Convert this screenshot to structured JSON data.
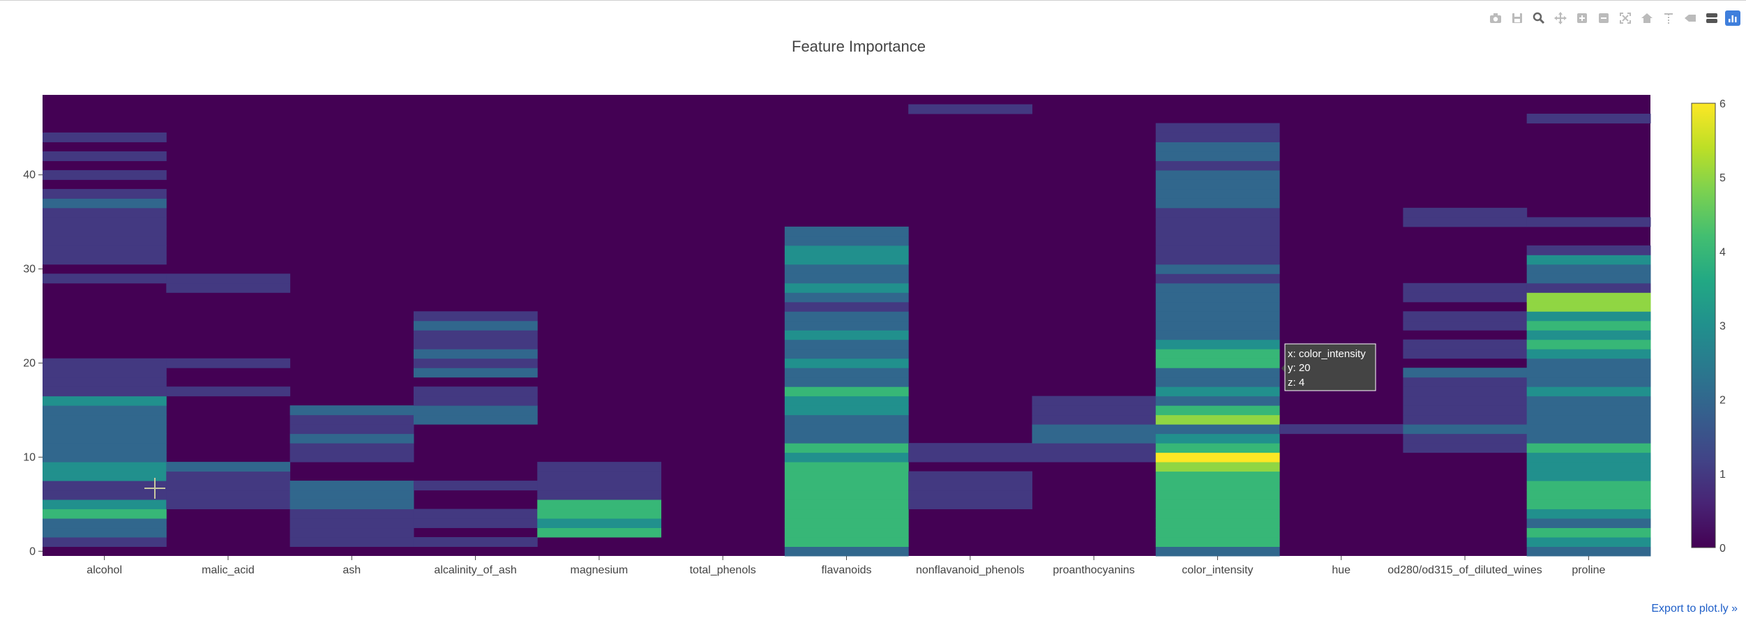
{
  "modebar": {
    "buttons": [
      {
        "name": "camera-icon",
        "glyph": "camera"
      },
      {
        "name": "save-icon",
        "glyph": "save"
      },
      {
        "name": "zoom-icon",
        "glyph": "zoom"
      },
      {
        "name": "pan-icon",
        "glyph": "pan"
      },
      {
        "name": "zoom-in-icon",
        "glyph": "plus"
      },
      {
        "name": "zoom-out-icon",
        "glyph": "minus"
      },
      {
        "name": "autoscale-icon",
        "glyph": "autoscale"
      },
      {
        "name": "reset-axes-icon",
        "glyph": "home"
      },
      {
        "name": "spike-lines-icon",
        "glyph": "spike"
      },
      {
        "name": "hover-closest-icon",
        "glyph": "closest"
      },
      {
        "name": "hover-compare-icon",
        "glyph": "compare"
      },
      {
        "name": "plotly-logo-icon",
        "glyph": "logo"
      }
    ]
  },
  "export_link": "Export to plot.ly »",
  "chart_data": {
    "type": "heatmap",
    "title": "Feature Importance",
    "x": [
      "alcohol",
      "malic_acid",
      "ash",
      "alcalinity_of_ash",
      "magnesium",
      "total_phenols",
      "flavanoids",
      "nonflavanoid_phenols",
      "proanthocyanins",
      "color_intensity",
      "hue",
      "od280/od315_of_diluted_wines",
      "proline"
    ],
    "y_range": [
      0,
      49
    ],
    "ylim": [
      -0.5,
      48.5
    ],
    "y_ticks": [
      0,
      10,
      20,
      30,
      40
    ],
    "zlim": [
      0,
      6
    ],
    "colorbar_ticks": [
      0,
      1,
      2,
      3,
      4,
      5,
      6
    ],
    "colorscale": "viridis",
    "z": [
      [
        0,
        1,
        2,
        2,
        4,
        3,
        1,
        1,
        3,
        3,
        2,
        2,
        2,
        2,
        2,
        2,
        3,
        1,
        1,
        1,
        1,
        0,
        0,
        0,
        0,
        0,
        0,
        0,
        0,
        1,
        0,
        1,
        1,
        1,
        1,
        1,
        1,
        2,
        1,
        0,
        1,
        0,
        1,
        0,
        1,
        0,
        0,
        0,
        0
      ],
      [
        0,
        0,
        0,
        0,
        0,
        1,
        1,
        1,
        1,
        2,
        0,
        0,
        0,
        0,
        0,
        0,
        0,
        1,
        0,
        0,
        1,
        0,
        0,
        0,
        0,
        0,
        0,
        0,
        1,
        1,
        0,
        0,
        0,
        0,
        0,
        0,
        0,
        0,
        0,
        0,
        0,
        0,
        0,
        0,
        0,
        0,
        0,
        0,
        0
      ],
      [
        0,
        1,
        1,
        1,
        1,
        2,
        2,
        2,
        0,
        0,
        1,
        1,
        2,
        1,
        1,
        2,
        0,
        0,
        0,
        0,
        0,
        0,
        0,
        0,
        0,
        0,
        0,
        0,
        0,
        0,
        0,
        0,
        0,
        0,
        0,
        0,
        0,
        0,
        0,
        0,
        0,
        0,
        0,
        0,
        0,
        0,
        0,
        0,
        0
      ],
      [
        0,
        1,
        0,
        1,
        1,
        0,
        0,
        1,
        0,
        0,
        0,
        0,
        0,
        0,
        2,
        2,
        1,
        1,
        0,
        2,
        1,
        2,
        1,
        1,
        2,
        1,
        0,
        0,
        0,
        0,
        0,
        0,
        0,
        0,
        0,
        0,
        0,
        0,
        0,
        0,
        0,
        0,
        0,
        0,
        0,
        0,
        0,
        0,
        0
      ],
      [
        0,
        0,
        4,
        3,
        4,
        4,
        1,
        1,
        1,
        1,
        0,
        0,
        0,
        0,
        0,
        0,
        0,
        0,
        0,
        0,
        0,
        0,
        0,
        0,
        0,
        0,
        0,
        0,
        0,
        0,
        0,
        0,
        0,
        0,
        0,
        0,
        0,
        0,
        0,
        0,
        0,
        0,
        0,
        0,
        0,
        0,
        0,
        0,
        0
      ],
      [
        0,
        0,
        0,
        0,
        0,
        0,
        0,
        0,
        0,
        0,
        0,
        0,
        0,
        0,
        0,
        0,
        0,
        0,
        0,
        0,
        0,
        0,
        0,
        0,
        0,
        0,
        0,
        0,
        0,
        0,
        0,
        0,
        0,
        0,
        0,
        0,
        0,
        0,
        0,
        0,
        0,
        0,
        0,
        0,
        0,
        0,
        0,
        0,
        0
      ],
      [
        2,
        4,
        4,
        4,
        4,
        4,
        4,
        4,
        4,
        4,
        3,
        4,
        2,
        2,
        2,
        3,
        3,
        4,
        2,
        2,
        3,
        2,
        2,
        3,
        2,
        2,
        1,
        2,
        3,
        2,
        2,
        3,
        3,
        2,
        2,
        0,
        0,
        0,
        0,
        0,
        0,
        0,
        0,
        0,
        0,
        0,
        0,
        0,
        0
      ],
      [
        0,
        0,
        0,
        0,
        0,
        1,
        1,
        1,
        1,
        0,
        1,
        1,
        0,
        0,
        0,
        0,
        0,
        0,
        0,
        0,
        0,
        0,
        0,
        0,
        0,
        0,
        0,
        0,
        0,
        0,
        0,
        0,
        0,
        0,
        0,
        0,
        0,
        0,
        0,
        0,
        0,
        0,
        0,
        0,
        0,
        0,
        0,
        1,
        0
      ],
      [
        0,
        0,
        0,
        0,
        0,
        0,
        0,
        0,
        0,
        0,
        1,
        1,
        2,
        2,
        1,
        1,
        1,
        0,
        0,
        0,
        0,
        0,
        0,
        0,
        0,
        0,
        0,
        0,
        0,
        0,
        0,
        0,
        0,
        0,
        0,
        0,
        0,
        0,
        0,
        0,
        0,
        0,
        0,
        0,
        0,
        0,
        0,
        0,
        0
      ],
      [
        2,
        4,
        4,
        4,
        4,
        4,
        4,
        4,
        4,
        5,
        6,
        4,
        3,
        2,
        5,
        4,
        2,
        3,
        2,
        2,
        4,
        4,
        3,
        2,
        2,
        2,
        2,
        2,
        2,
        1,
        2,
        1,
        1,
        1,
        1,
        1,
        1,
        2,
        2,
        2,
        2,
        1,
        2,
        2,
        1,
        1,
        0,
        0,
        0
      ],
      [
        0,
        0,
        0,
        0,
        0,
        0,
        0,
        0,
        0,
        0,
        0,
        0,
        0,
        1,
        0,
        0,
        0,
        0,
        0,
        0,
        0,
        0,
        0,
        0,
        0,
        0,
        0,
        0,
        0,
        0,
        0,
        0,
        0,
        0,
        0,
        0,
        0,
        0,
        0,
        0,
        0,
        0,
        0,
        0,
        0,
        0,
        0,
        0,
        0
      ],
      [
        0,
        0,
        0,
        0,
        0,
        0,
        0,
        0,
        0,
        0,
        0,
        1,
        1,
        2,
        1,
        1,
        1,
        1,
        1,
        2,
        0,
        1,
        1,
        0,
        1,
        1,
        0,
        1,
        1,
        0,
        0,
        0,
        0,
        0,
        0,
        1,
        1,
        0,
        0,
        0,
        0,
        0,
        0,
        0,
        0,
        0,
        0,
        0,
        0
      ],
      [
        2,
        3,
        4,
        2,
        3,
        4,
        4,
        4,
        3,
        3,
        3,
        4,
        2,
        2,
        2,
        2,
        2,
        3,
        2,
        2,
        2,
        3,
        4,
        3,
        4,
        3,
        5,
        5,
        1,
        2,
        2,
        3,
        1,
        0,
        0,
        1,
        0,
        0,
        0,
        0,
        0,
        0,
        0,
        0,
        0,
        0,
        1,
        0,
        0
      ]
    ],
    "tooltip": {
      "x_line": "x: color_intensity",
      "y_line": "y: 20",
      "z_line": "z: 4"
    }
  }
}
